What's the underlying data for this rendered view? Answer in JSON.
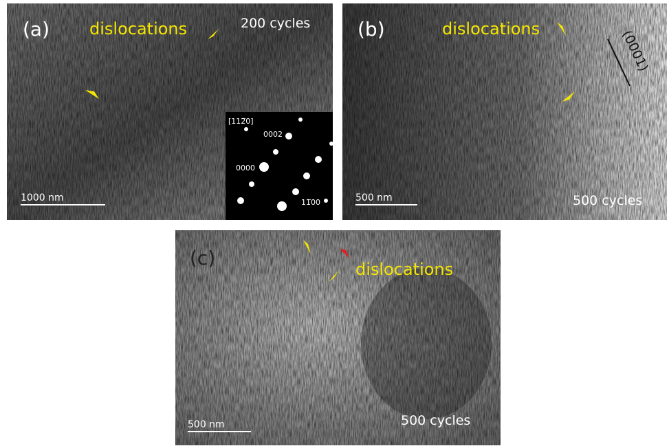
{
  "panels": [
    {
      "label": "(a)",
      "annotation": "dislocations",
      "cycles": "200 cycles",
      "scale_bar": "1000 nm",
      "inset": {
        "zone_axis": "[112̅0]",
        "spot_top": "0002",
        "spot_center": "0000",
        "spot_bottom": "11̅00"
      }
    },
    {
      "label": "(b)",
      "annotation": "dislocations",
      "cycles": "500 cycles",
      "scale_bar": "500 nm",
      "plane": "(0001)"
    },
    {
      "label": "(c)",
      "annotation": "dislocations",
      "cycles": "500 cycles",
      "scale_bar": "500 nm"
    }
  ]
}
